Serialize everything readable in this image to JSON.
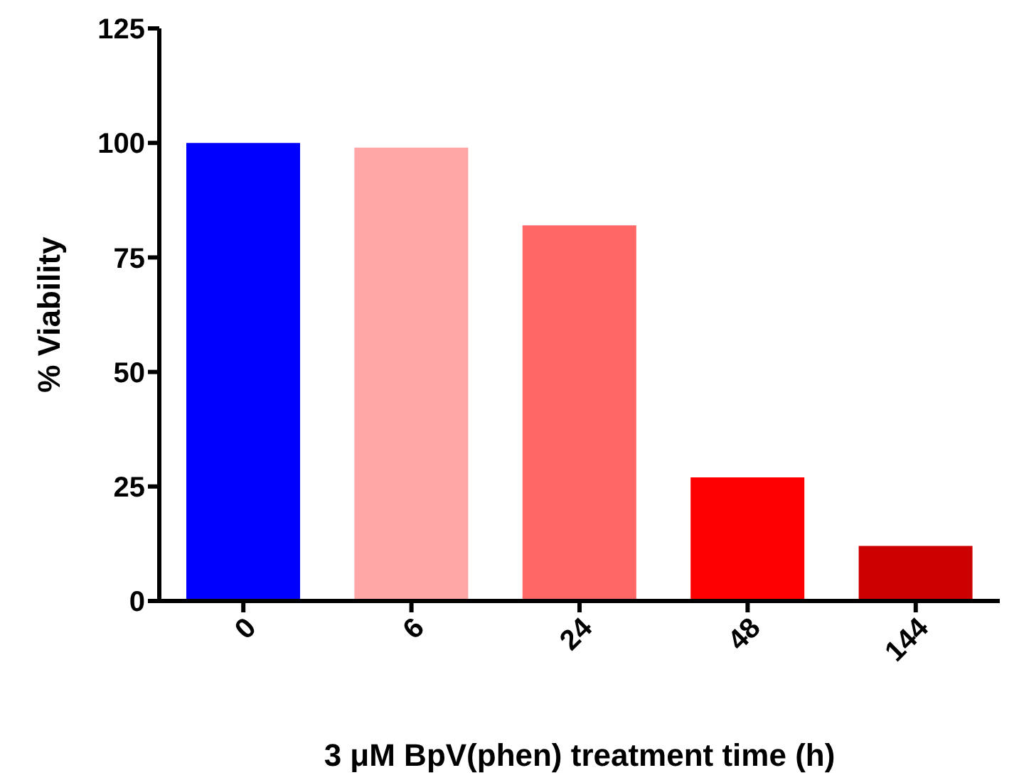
{
  "chart_data": {
    "type": "bar",
    "categories": [
      "0",
      "6",
      "24",
      "48",
      "144"
    ],
    "values": [
      100,
      99,
      82,
      27,
      12
    ],
    "colors": [
      "#0000ff",
      "#ffa6a6",
      "#ff6666",
      "#ff0000",
      "#cc0000"
    ],
    "xlabel": "3 μM BpV(phen) treatment time (h)",
    "ylabel": "% Viability",
    "ylim": [
      0,
      125
    ],
    "yticks": [
      0,
      25,
      50,
      75,
      100,
      125
    ],
    "grid": false,
    "legend": false
  }
}
